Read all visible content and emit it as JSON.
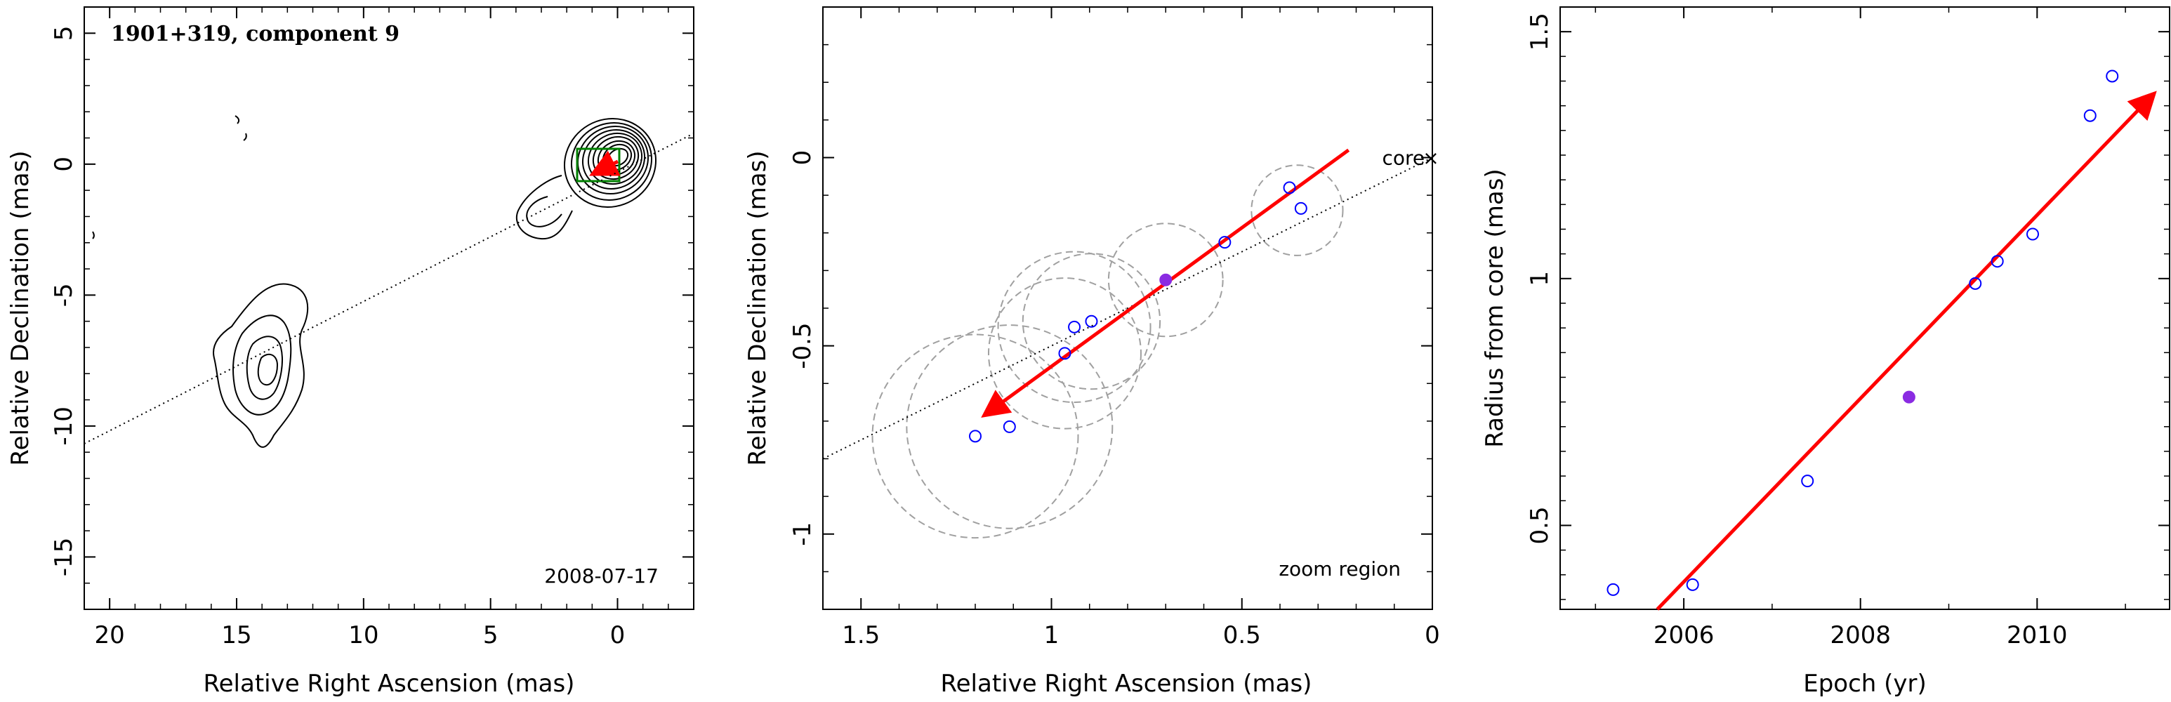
{
  "chart_data": [
    {
      "type": "contour",
      "title": "1901+319, component 9",
      "date": "2008-07-17",
      "xlabel": "Relative Right Ascension (mas)",
      "ylabel": "Relative Declination (mas)",
      "xlim": [
        21,
        -3
      ],
      "ylim": [
        -17,
        6
      ],
      "xticks": [
        20,
        15,
        10,
        5,
        0
      ],
      "yticks": [
        5,
        0,
        -5,
        -10,
        -15
      ],
      "colors": {
        "contour": "#000000",
        "component": "#008000",
        "arrow": "#ff0000",
        "line": "#000000"
      }
    },
    {
      "type": "scatter",
      "xlabel": "Relative Right Ascension (mas)",
      "ylabel": "Relative Declination (mas)",
      "xlim": [
        1.6,
        0
      ],
      "ylim": [
        -1.2,
        0.4
      ],
      "xticks": [
        1.5,
        1,
        0.5,
        0
      ],
      "xtick_labels": [
        "1.5",
        "1",
        "0.5",
        "0"
      ],
      "yticks": [
        0,
        -0.5,
        -1
      ],
      "ytick_labels": [
        "0",
        "-0.5",
        "-1"
      ],
      "core_label": "core",
      "region_label": "zoom region",
      "points": [
        {
          "x": 1.2,
          "y": -0.74,
          "filled": false
        },
        {
          "x": 1.11,
          "y": -0.715,
          "filled": false
        },
        {
          "x": 0.965,
          "y": -0.52,
          "filled": false
        },
        {
          "x": 0.94,
          "y": -0.45,
          "filled": false
        },
        {
          "x": 0.895,
          "y": -0.435,
          "filled": false
        },
        {
          "x": 0.7,
          "y": -0.325,
          "filled": true
        },
        {
          "x": 0.545,
          "y": -0.225,
          "filled": false
        },
        {
          "x": 0.375,
          "y": -0.08,
          "filled": false
        },
        {
          "x": 0.345,
          "y": -0.135,
          "filled": false
        }
      ],
      "circles": [
        {
          "x": 1.2,
          "y": -0.74,
          "r": 0.27
        },
        {
          "x": 1.11,
          "y": -0.715,
          "r": 0.27
        },
        {
          "x": 0.965,
          "y": -0.52,
          "r": 0.2
        },
        {
          "x": 0.94,
          "y": -0.45,
          "r": 0.2
        },
        {
          "x": 0.895,
          "y": -0.435,
          "r": 0.18
        },
        {
          "x": 0.7,
          "y": -0.325,
          "r": 0.15
        },
        {
          "x": 0.355,
          "y": -0.14,
          "r": 0.12
        }
      ],
      "arrow": {
        "from": [
          0.22,
          0.02
        ],
        "to": [
          1.17,
          -0.68
        ]
      },
      "dotted_line": {
        "from": [
          1.6,
          -0.8
        ],
        "to": [
          0,
          0
        ]
      },
      "colors": {
        "points": "#0000ff",
        "filled": "#8a2be2",
        "circles": "#a0a0a0",
        "arrow": "#ff0000",
        "line": "#000000"
      }
    },
    {
      "type": "scatter",
      "xlabel": "Epoch (yr)",
      "ylabel": "Radius from core (mas)",
      "xlim": [
        2004.6,
        2011.5
      ],
      "ylim": [
        0.33,
        1.55
      ],
      "xticks": [
        2006,
        2008,
        2010
      ],
      "yticks": [
        0.5,
        1,
        1.5
      ],
      "ytick_labels": [
        "0.5",
        "1",
        "1.5"
      ],
      "points": [
        {
          "x": 2005.2,
          "y": 0.37,
          "filled": false
        },
        {
          "x": 2006.1,
          "y": 0.38,
          "filled": false
        },
        {
          "x": 2007.4,
          "y": 0.59,
          "filled": false
        },
        {
          "x": 2008.55,
          "y": 0.76,
          "filled": true
        },
        {
          "x": 2009.3,
          "y": 0.99,
          "filled": false
        },
        {
          "x": 2009.55,
          "y": 1.035,
          "filled": false
        },
        {
          "x": 2009.95,
          "y": 1.09,
          "filled": false
        },
        {
          "x": 2010.6,
          "y": 1.33,
          "filled": false
        },
        {
          "x": 2010.85,
          "y": 1.41,
          "filled": false
        }
      ],
      "fit_arrow": {
        "from": [
          2005.7,
          0.33
        ],
        "to": [
          2011.3,
          1.37
        ]
      },
      "colors": {
        "points": "#0000ff",
        "filled": "#8a2be2",
        "arrow": "#ff0000"
      }
    }
  ]
}
